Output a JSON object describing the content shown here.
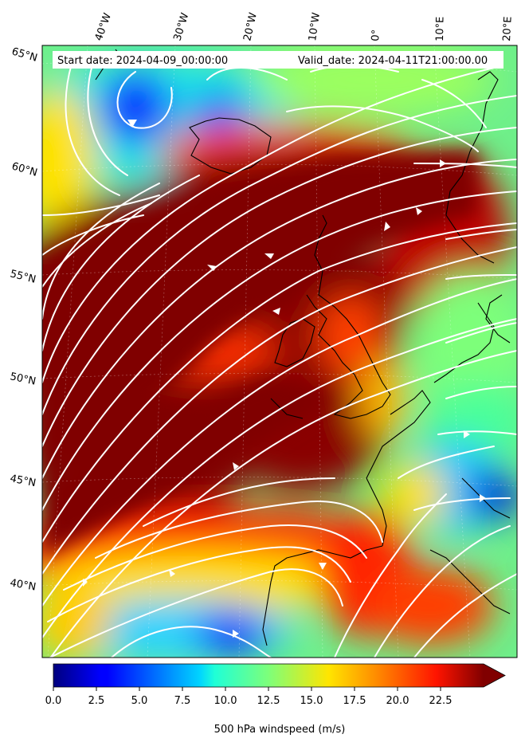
{
  "header": {
    "start_date": "Start date: 2024-04-09_00:00:00",
    "valid_date": "Valid_date: 2024-04-11T21:00:00.00"
  },
  "axes": {
    "lon_labels": [
      "40°W",
      "30°W",
      "20°W",
      "10°W",
      "0°",
      "10°E",
      "20°E"
    ],
    "lat_labels": [
      "65°N",
      "60°N",
      "55°N",
      "50°N",
      "45°N",
      "40°N"
    ]
  },
  "colorbar": {
    "label": "500 hPa windspeed (m/s)",
    "ticks": [
      "0.0",
      "2.5",
      "5.0",
      "7.5",
      "10.0",
      "12.5",
      "15.0",
      "17.5",
      "20.0",
      "22.5"
    ],
    "min": 0,
    "max": 25,
    "extend": "max",
    "colormap": "jet"
  },
  "colors": {
    "jet_core": "#800000",
    "streamlines": "#ffffff",
    "coastline": "#000000"
  }
}
